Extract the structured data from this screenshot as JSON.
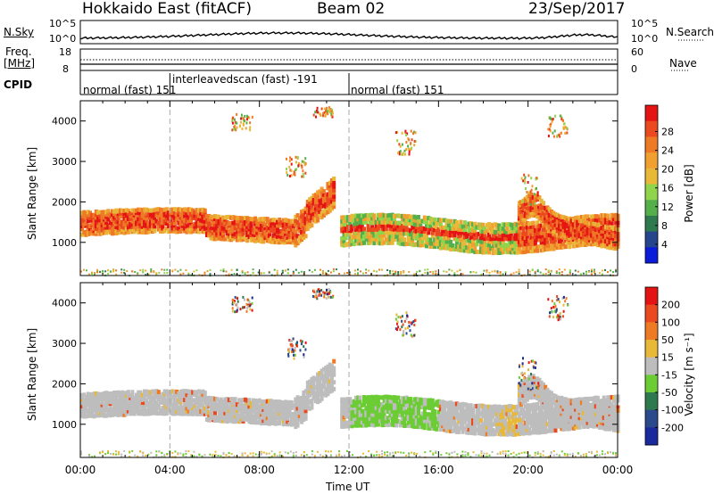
{
  "header": {
    "station": "Hokkaido East (fitACF)",
    "beam": "Beam 02",
    "date": "23/Sep/2017"
  },
  "panels": {
    "nsky_label": "N.Sky",
    "nsky_ticks": [
      "10^5",
      "10^0"
    ],
    "nsky_ticks_right": [
      "10^5",
      "10^0"
    ],
    "nsearch_label": "N.Search",
    "freq_label_1": "Freq.",
    "freq_label_2": "[MHz]",
    "freq_ticks": [
      "18",
      "8"
    ],
    "nave_ticks": [
      "60",
      "0"
    ],
    "nave_label": "Nave",
    "cpid_label": "CPID",
    "cpid_segments": [
      {
        "text": "normal (fast)  151"
      },
      {
        "text": "interleavedscan (fast) -191"
      },
      {
        "text": "normal (fast)  151"
      }
    ]
  },
  "chart_data": [
    {
      "type": "heatmap",
      "name": "power",
      "ylabel": "Slant Range [km]",
      "xlabel": "Time UT",
      "x_ticks": [
        "00:00",
        "04:00",
        "08:00",
        "12:00",
        "16:00",
        "20:00",
        "00:00"
      ],
      "y_ticks": [
        1000,
        2000,
        3000,
        4000
      ],
      "ylim": [
        180,
        4500
      ],
      "xlim_hours": [
        0,
        24
      ],
      "colorbar_label": "Power [dB]",
      "colorbar_ticks": [
        4,
        8,
        12,
        16,
        20,
        24,
        28
      ],
      "colorbar_colors": [
        "#0a1cd8",
        "#25458c",
        "#2e7a4e",
        "#55b04c",
        "#8fd44a",
        "#e8b838",
        "#f0a030",
        "#ee7a26",
        "#ea4a1e",
        "#e41414"
      ]
    },
    {
      "type": "heatmap",
      "name": "velocity",
      "ylabel": "Slant Range [km]",
      "xlabel": "Time UT",
      "x_ticks": [
        "00:00",
        "04:00",
        "08:00",
        "12:00",
        "16:00",
        "20:00",
        "00:00"
      ],
      "y_ticks": [
        1000,
        2000,
        3000,
        4000
      ],
      "ylim": [
        180,
        4500
      ],
      "colorbar_label": "Velocity [m s⁻¹]",
      "colorbar_ticks": [
        200,
        100,
        50,
        15,
        -15,
        -50,
        -100,
        -200
      ],
      "colorbar_colors": [
        "#1a2a9c",
        "#2a4a8c",
        "#2e7a4e",
        "#6ccc34",
        "#bdbdbd",
        "#e8b838",
        "#ee7a26",
        "#ea4a1e",
        "#e41414"
      ]
    }
  ],
  "axis_title": "Time UT"
}
